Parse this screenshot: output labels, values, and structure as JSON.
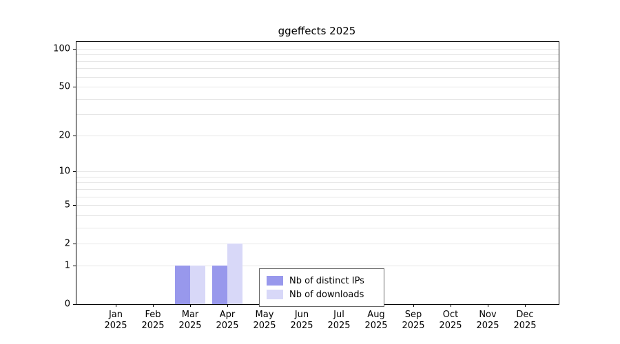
{
  "title": "ggeffects 2025",
  "chart_data": {
    "type": "bar",
    "title": "ggeffects 2025",
    "categories": [
      "Jan 2025",
      "Feb 2025",
      "Mar 2025",
      "Apr 2025",
      "May 2025",
      "Jun 2025",
      "Jul 2025",
      "Aug 2025",
      "Sep 2025",
      "Oct 2025",
      "Nov 2025",
      "Dec 2025"
    ],
    "series": [
      {
        "name": "Nb of distinct IPs",
        "color": "#9898ec",
        "values": [
          0,
          0,
          1,
          1,
          0,
          0,
          0,
          0,
          0,
          0,
          0,
          0
        ]
      },
      {
        "name": "Nb of downloads",
        "color": "#d8d8f8",
        "values": [
          0,
          0,
          1,
          2,
          0,
          0,
          0,
          0,
          0,
          0,
          0,
          0
        ]
      }
    ],
    "y_ticks": [
      0,
      1,
      2,
      5,
      10,
      20,
      50,
      100
    ],
    "y_scale": "log1p",
    "ylim": [
      0,
      100
    ],
    "grid": "horizontal",
    "legend_position": "inside-bottom-center"
  }
}
